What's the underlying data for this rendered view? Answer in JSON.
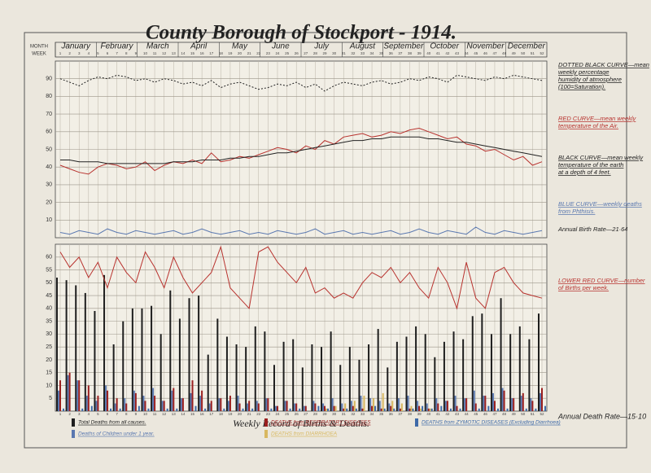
{
  "title": "County Borough of Stockport - 1914.",
  "subtitle": "Weekly Record of Births & Deaths.",
  "chart_data": [
    {
      "type": "line",
      "month_header": "MONTH",
      "week_header": "WEEK",
      "months": [
        "January",
        "February",
        "March",
        "April",
        "May",
        "June",
        "July",
        "August",
        "September",
        "October",
        "November",
        "December"
      ],
      "x": [
        1,
        2,
        3,
        4,
        5,
        6,
        7,
        8,
        9,
        10,
        11,
        12,
        13,
        14,
        15,
        16,
        17,
        18,
        19,
        20,
        21,
        22,
        23,
        24,
        25,
        26,
        27,
        28,
        29,
        30,
        31,
        32,
        33,
        34,
        35,
        36,
        37,
        38,
        39,
        40,
        41,
        42,
        43,
        44,
        45,
        46,
        47,
        48,
        49,
        50,
        51,
        52
      ],
      "xlim": [
        1,
        52
      ],
      "ylim": [
        0,
        100
      ],
      "yticks": [
        10,
        20,
        30,
        40,
        50,
        60,
        70,
        80,
        90
      ],
      "grid": true,
      "series": [
        {
          "name": "DOTTED BLACK CURVE—mean weekly percentage humidity of atmosphere (100=Saturation).",
          "color": "#222222",
          "dash": true,
          "values": [
            90,
            88,
            86,
            89,
            91,
            90,
            92,
            91,
            89,
            90,
            88,
            90,
            89,
            87,
            88,
            86,
            89,
            85,
            87,
            88,
            86,
            84,
            85,
            87,
            86,
            88,
            85,
            87,
            83,
            86,
            88,
            87,
            86,
            88,
            89,
            87,
            88,
            90,
            89,
            91,
            90,
            88,
            92,
            91,
            90,
            89,
            91,
            90,
            92,
            91,
            90,
            89
          ]
        },
        {
          "name": "RED CURVE—mean weekly temperature of the Air.",
          "color": "#b8322e",
          "dash": false,
          "values": [
            41,
            39,
            37,
            36,
            40,
            42,
            41,
            39,
            40,
            43,
            38,
            41,
            43,
            42,
            44,
            42,
            48,
            43,
            44,
            46,
            45,
            47,
            49,
            51,
            50,
            48,
            52,
            50,
            55,
            53,
            57,
            58,
            59,
            57,
            58,
            60,
            59,
            61,
            62,
            60,
            58,
            56,
            57,
            53,
            52,
            49,
            50,
            47,
            44,
            46,
            41,
            43
          ]
        },
        {
          "name": "BLACK CURVE—mean weekly temperature of the earth at a depth of 4 feet.",
          "color": "#222222",
          "dash": false,
          "values": [
            44,
            44,
            43,
            43,
            43,
            42,
            42,
            42,
            42,
            42,
            42,
            42,
            43,
            43,
            43,
            44,
            44,
            44,
            45,
            45,
            46,
            46,
            47,
            48,
            48,
            49,
            50,
            51,
            52,
            53,
            54,
            55,
            55,
            56,
            56,
            57,
            57,
            57,
            57,
            56,
            56,
            55,
            54,
            54,
            53,
            52,
            51,
            50,
            49,
            48,
            47,
            46
          ]
        },
        {
          "name": "BLUE CURVE—weekly deaths from Phthisis.",
          "color": "#5a78b0",
          "dash": false,
          "values": [
            3,
            2,
            4,
            3,
            2,
            5,
            3,
            2,
            4,
            3,
            2,
            3,
            4,
            2,
            3,
            5,
            3,
            2,
            3,
            4,
            2,
            3,
            2,
            4,
            3,
            2,
            3,
            5,
            2,
            3,
            4,
            2,
            3,
            2,
            3,
            4,
            2,
            3,
            5,
            3,
            2,
            4,
            3,
            2,
            6,
            3,
            2,
            4,
            3,
            2,
            3,
            4
          ]
        }
      ],
      "annotations": [
        "Annual Birth Rate—21·64"
      ]
    },
    {
      "type": "bar",
      "x": [
        1,
        2,
        3,
        4,
        5,
        6,
        7,
        8,
        9,
        10,
        11,
        12,
        13,
        14,
        15,
        16,
        17,
        18,
        19,
        20,
        21,
        22,
        23,
        24,
        25,
        26,
        27,
        28,
        29,
        30,
        31,
        32,
        33,
        34,
        35,
        36,
        37,
        38,
        39,
        40,
        41,
        42,
        43,
        44,
        45,
        46,
        47,
        48,
        49,
        50,
        51,
        52
      ],
      "xlim": [
        1,
        52
      ],
      "ylim": [
        0,
        65
      ],
      "yticks": [
        5,
        10,
        15,
        20,
        25,
        30,
        35,
        40,
        45,
        50,
        55,
        60
      ],
      "grid": true,
      "series": [
        {
          "name": "LOWER RED CURVE—number of Births per week.",
          "color": "#b8322e",
          "kind": "line",
          "values": [
            62,
            56,
            60,
            52,
            58,
            48,
            60,
            54,
            50,
            62,
            56,
            48,
            60,
            52,
            46,
            50,
            54,
            64,
            48,
            44,
            40,
            62,
            64,
            58,
            54,
            50,
            56,
            46,
            48,
            44,
            46,
            44,
            50,
            54,
            52,
            56,
            50,
            54,
            48,
            44,
            56,
            50,
            40,
            58,
            44,
            40,
            54,
            56,
            50,
            46,
            45,
            44
          ]
        },
        {
          "name": "Total Deaths from all causes.",
          "color": "#1e1e1e",
          "kind": "bar",
          "values": [
            52,
            51,
            49,
            46,
            39,
            53,
            26,
            35,
            40,
            40,
            41,
            30,
            47,
            36,
            44,
            45,
            22,
            36,
            29,
            26,
            25,
            33,
            31,
            18,
            27,
            28,
            17,
            26,
            25,
            31,
            18,
            25,
            20,
            26,
            32,
            17,
            27,
            29,
            33,
            30,
            21,
            27,
            31,
            28,
            37,
            38,
            30,
            44,
            30,
            33,
            28,
            38
          ]
        },
        {
          "name": "Deaths of Children under 1 year.",
          "color": "#5a78b0",
          "kind": "bar",
          "values": [
            8,
            14,
            12,
            6,
            4,
            10,
            3,
            5,
            8,
            6,
            9,
            4,
            8,
            5,
            7,
            6,
            3,
            5,
            4,
            6,
            3,
            4,
            5,
            2,
            4,
            3,
            2,
            4,
            3,
            5,
            3,
            4,
            6,
            5,
            4,
            3,
            5,
            6,
            4,
            3,
            5,
            4,
            6,
            5,
            8,
            6,
            7,
            9,
            5,
            6,
            5,
            7
          ]
        },
        {
          "name": "DEATHS from RESPIRATORY DISEASES",
          "color": "#9a1f1f",
          "kind": "bar",
          "values": [
            12,
            15,
            12,
            10,
            6,
            8,
            5,
            3,
            7,
            4,
            6,
            4,
            9,
            5,
            12,
            8,
            4,
            5,
            6,
            3,
            4,
            3,
            5,
            2,
            4,
            3,
            2,
            3,
            2,
            2,
            1,
            2,
            1,
            2,
            1,
            2,
            1,
            1,
            2,
            1,
            3,
            4,
            2,
            5,
            3,
            6,
            4,
            8,
            5,
            7,
            4,
            9
          ]
        },
        {
          "name": "DEATHS from DIARRHOEA",
          "color": "#d8b860",
          "kind": "bar",
          "values": [
            0,
            0,
            0,
            0,
            0,
            0,
            0,
            0,
            0,
            0,
            0,
            0,
            0,
            0,
            0,
            0,
            0,
            0,
            0,
            0,
            0,
            0,
            0,
            0,
            0,
            0,
            0,
            0,
            1,
            2,
            3,
            4,
            6,
            5,
            7,
            4,
            3,
            2,
            1,
            1,
            0,
            0,
            0,
            0,
            0,
            0,
            0,
            0,
            0,
            0,
            0,
            0
          ]
        },
        {
          "name": "DEATHS from ZYMOTIC DISEASES (Excluding Diarrhoea)",
          "color": "#3e6aa8",
          "kind": "bar",
          "values": [
            1,
            0,
            1,
            2,
            0,
            1,
            1,
            0,
            2,
            1,
            0,
            1,
            1,
            0,
            2,
            1,
            0,
            1,
            0,
            1,
            1,
            0,
            1,
            0,
            1,
            1,
            0,
            2,
            1,
            0,
            1,
            1,
            0,
            2,
            1,
            1,
            0,
            1,
            2,
            1,
            2,
            1,
            1,
            0,
            1,
            2,
            1,
            1,
            0,
            1,
            1,
            2
          ]
        }
      ],
      "annotations": [
        "Annual Death Rate—15·10"
      ]
    }
  ]
}
